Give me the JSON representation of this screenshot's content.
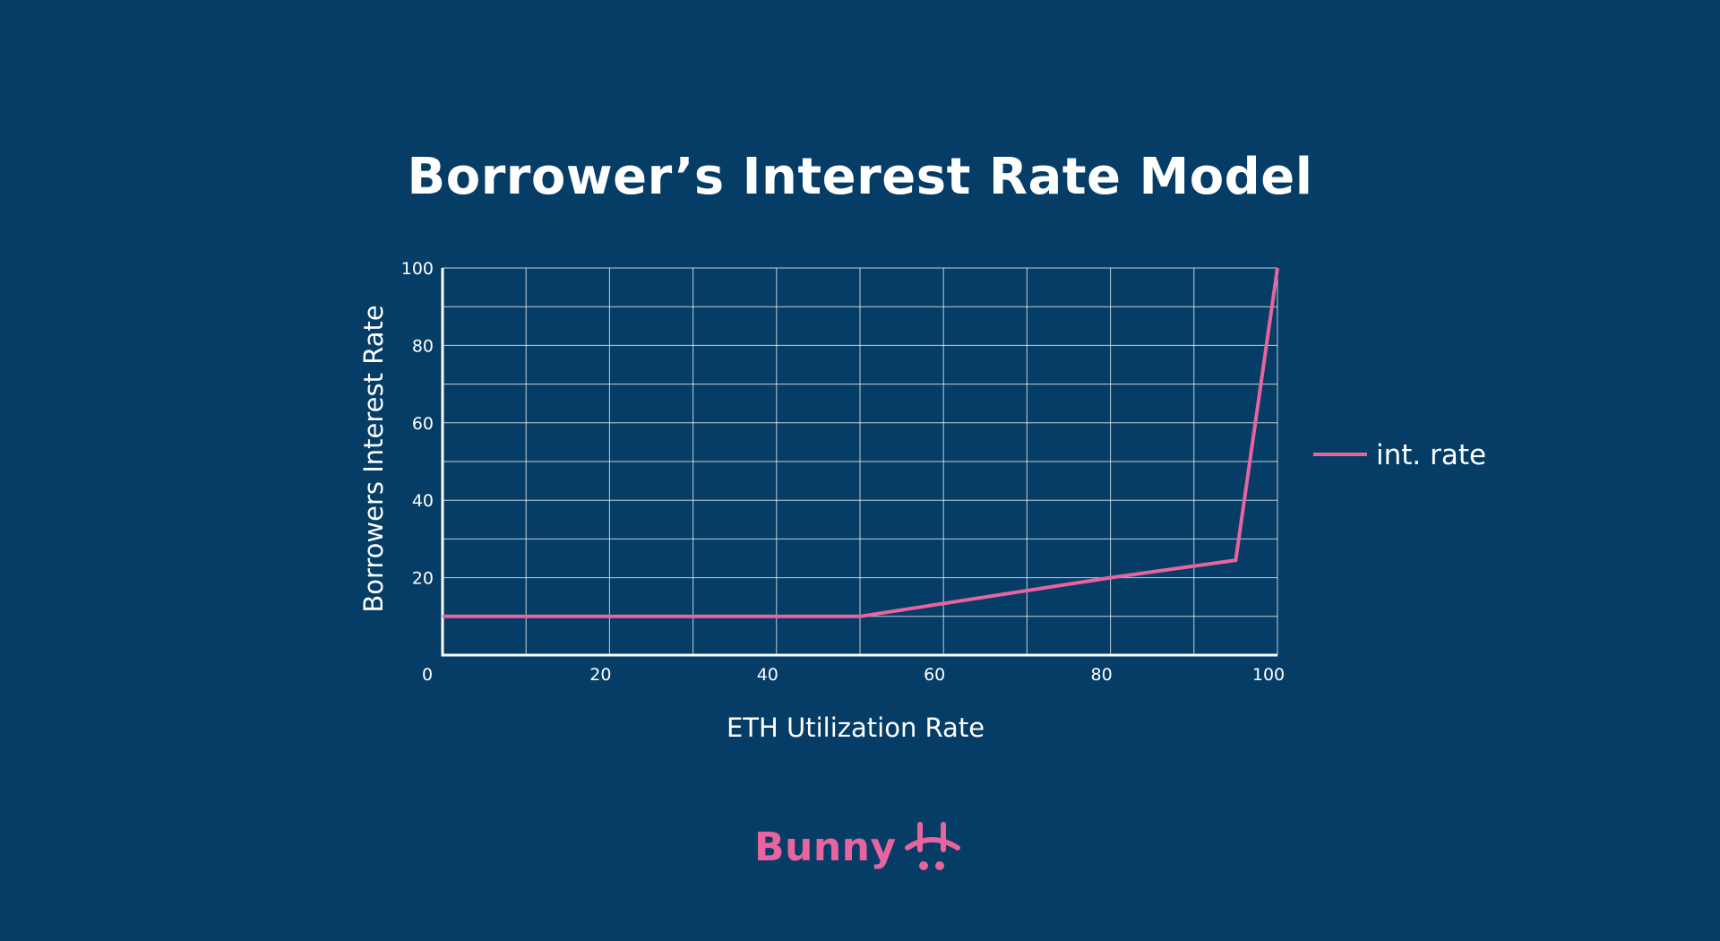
{
  "chart_data": {
    "type": "line",
    "title": "Borrower’s Interest Rate Model",
    "xlabel": "ETH Utilization Rate",
    "ylabel": "Borrowers Interest Rate",
    "xlim": [
      0,
      100
    ],
    "ylim": [
      0,
      100
    ],
    "xticks": [
      0,
      20,
      40,
      60,
      80,
      100
    ],
    "yticks": [
      20,
      40,
      60,
      80,
      100
    ],
    "grid": true,
    "legend_position": "right",
    "series": [
      {
        "name": "int. rate",
        "color": "#e8649e",
        "x": [
          0,
          50,
          80,
          95,
          100
        ],
        "y": [
          10,
          10,
          20,
          24.5,
          100
        ]
      }
    ]
  },
  "brand": {
    "name": "Bunny",
    "logo_icon": "bunny-logo-icon",
    "color": "#e8649e"
  },
  "colors": {
    "background": "#063d66",
    "grid": "#ffffff",
    "text": "#ffffff"
  }
}
